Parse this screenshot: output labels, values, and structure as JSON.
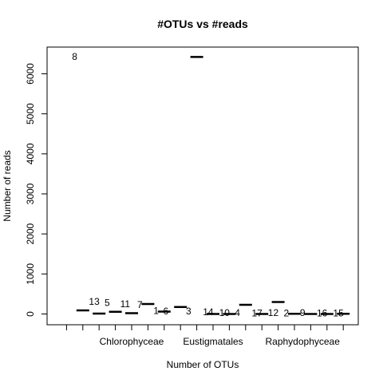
{
  "chart_data": {
    "type": "box",
    "title": "#OTUs vs #reads",
    "xlabel": "Number of OTUs",
    "ylabel": "Number of reads",
    "ylim": [
      -250,
      6750
    ],
    "yticks": [
      0,
      1000,
      2000,
      3000,
      4000,
      5000,
      6000
    ],
    "ytick_labels": [
      "0",
      "1000",
      "2000",
      "3000",
      "4000",
      "5000",
      "6000"
    ],
    "x_category_labels": [
      {
        "label": "Chlorophyceae",
        "position": 5
      },
      {
        "label": "Eustigmatales",
        "position": 10
      },
      {
        "label": "Raphydophyceae",
        "position": 15.5
      }
    ],
    "x_ticks": [
      1,
      2,
      3,
      4,
      5,
      6,
      7,
      8,
      9,
      10,
      11,
      12,
      13,
      14,
      15,
      16,
      17,
      18
    ],
    "groups": [
      {
        "x": 2,
        "value": 90
      },
      {
        "x": 3,
        "value": 10
      },
      {
        "x": 4,
        "value": 55
      },
      {
        "x": 5,
        "value": 20
      },
      {
        "x": 6,
        "value": 250
      },
      {
        "x": 7,
        "value": 60
      },
      {
        "x": 8,
        "value": 175
      },
      {
        "x": 9,
        "value": 6420
      },
      {
        "x": 10,
        "value": 0
      },
      {
        "x": 11,
        "value": 0
      },
      {
        "x": 12,
        "value": 230
      },
      {
        "x": 13,
        "value": 0
      },
      {
        "x": 14,
        "value": 300
      },
      {
        "x": 15,
        "value": 5
      },
      {
        "x": 16,
        "value": 0
      },
      {
        "x": 17,
        "value": 0
      },
      {
        "x": 18,
        "value": 5
      }
    ],
    "point_labels": [
      {
        "text": "8",
        "x": 1.5,
        "y": 6430
      },
      {
        "text": "13",
        "x": 2.7,
        "y": 310
      },
      {
        "text": "5",
        "x": 3.5,
        "y": 280
      },
      {
        "text": "11",
        "x": 4.6,
        "y": 250
      },
      {
        "text": "7",
        "x": 5.5,
        "y": 230
      },
      {
        "text": "1",
        "x": 6.5,
        "y": 80
      },
      {
        "text": "6",
        "x": 7.1,
        "y": 70
      },
      {
        "text": "3",
        "x": 8.5,
        "y": 70
      },
      {
        "text": "14",
        "x": 9.7,
        "y": 50
      },
      {
        "text": "10",
        "x": 10.7,
        "y": 30
      },
      {
        "text": "4",
        "x": 11.5,
        "y": 30
      },
      {
        "text": "17",
        "x": 12.7,
        "y": 20
      },
      {
        "text": "12",
        "x": 13.7,
        "y": 30
      },
      {
        "text": "2",
        "x": 14.5,
        "y": 20
      },
      {
        "text": "9",
        "x": 15.5,
        "y": 30
      },
      {
        "text": "16",
        "x": 16.7,
        "y": 20
      },
      {
        "text": "15",
        "x": 17.7,
        "y": 20
      }
    ]
  }
}
